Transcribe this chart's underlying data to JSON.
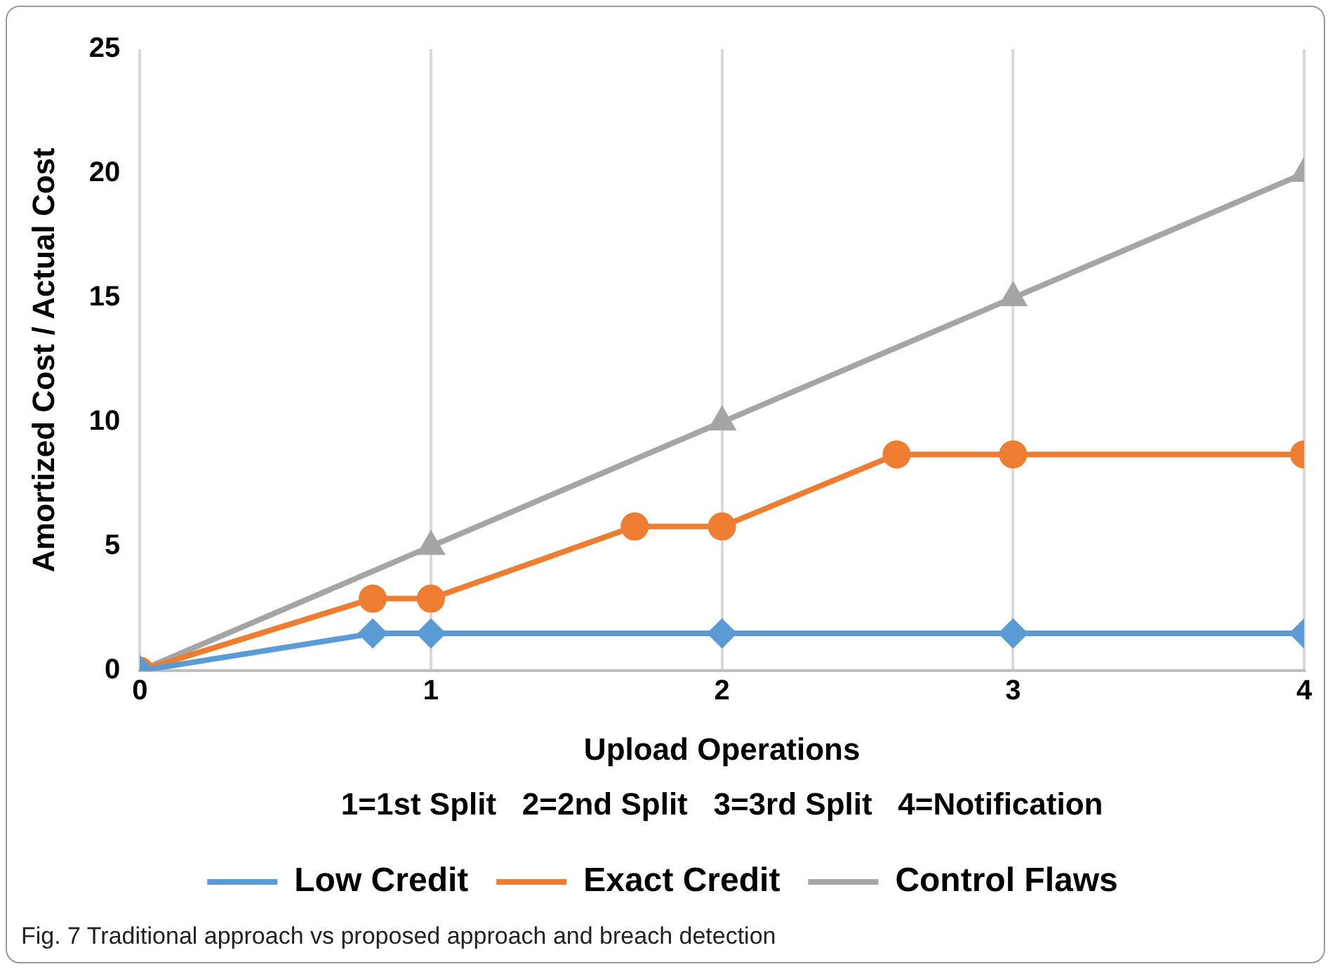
{
  "chart_data": {
    "type": "line",
    "xlabel": "Upload Operations",
    "ylabel": "Amortized Cost / Actual Cost",
    "annotations": [
      "1=1st Split   2=2nd Split   3=3rd Split   4=Notification",
      "Fig. 7  Traditional approach vs proposed approach and breach detection"
    ],
    "xlim": [
      0,
      4
    ],
    "xticks": [
      0,
      1,
      2,
      3,
      4
    ],
    "ylim": [
      0,
      25
    ],
    "yticks": [
      0,
      5,
      10,
      15,
      20,
      25
    ],
    "grid": "x",
    "legend": "bottom",
    "line_style": "solid",
    "series": [
      {
        "name": "Low Credit",
        "color": "#5b9bd5",
        "marker": "diamond",
        "x": [
          0,
          0.8,
          1,
          2,
          3,
          4
        ],
        "values": [
          0,
          1.5,
          1.5,
          1.5,
          1.5,
          1.5
        ]
      },
      {
        "name": "Exact Credit",
        "color": "#ed7d31",
        "marker": "circle",
        "x": [
          0,
          0.8,
          1,
          1.7,
          2,
          2.6,
          3,
          4
        ],
        "values": [
          0,
          2.9,
          2.9,
          5.8,
          5.8,
          8.7,
          8.7,
          8.7
        ]
      },
      {
        "name": "Control Flaws",
        "color": "#a5a5a5",
        "marker": "triangle",
        "x": [
          0,
          1,
          2,
          3,
          4
        ],
        "values": [
          0,
          5,
          10,
          15,
          20
        ]
      }
    ]
  }
}
